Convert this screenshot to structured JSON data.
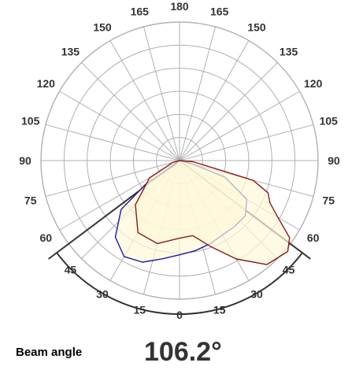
{
  "chart_data": {
    "type": "polar",
    "angle_labels": {
      "right": [
        "0",
        "15",
        "30",
        "45",
        "60",
        "75",
        "90",
        "105",
        "120",
        "135",
        "150",
        "165",
        "180"
      ],
      "left": [
        "15",
        "30",
        "45",
        "60",
        "75",
        "90",
        "105",
        "120",
        "135",
        "150",
        "165"
      ]
    },
    "radial_grid_rings": 6,
    "radial_spokes_step_deg": 15,
    "series": [
      {
        "color": "#1a1a9e",
        "fill": "#fdf8d8",
        "points_deg_r": [
          [
            -50,
            0.05
          ],
          [
            -55,
            0.3
          ],
          [
            -50,
            0.55
          ],
          [
            -40,
            0.72
          ],
          [
            -30,
            0.8
          ],
          [
            -20,
            0.78
          ],
          [
            -10,
            0.72
          ],
          [
            0,
            0.68
          ],
          [
            10,
            0.66
          ],
          [
            20,
            0.64
          ],
          [
            30,
            0.62
          ],
          [
            40,
            0.62
          ],
          [
            50,
            0.62
          ],
          [
            60,
            0.56
          ],
          [
            70,
            0.35
          ],
          [
            75,
            0.1
          ]
        ]
      },
      {
        "color": "#8b1a1a",
        "fill": "#fdf8d8",
        "points_deg_r": [
          [
            -75,
            0.05
          ],
          [
            -60,
            0.25
          ],
          [
            -45,
            0.45
          ],
          [
            -30,
            0.6
          ],
          [
            -15,
            0.62
          ],
          [
            0,
            0.56
          ],
          [
            10,
            0.55
          ],
          [
            20,
            0.66
          ],
          [
            30,
            0.82
          ],
          [
            40,
            0.98
          ],
          [
            50,
            1.02
          ],
          [
            55,
            0.97
          ],
          [
            60,
            0.82
          ],
          [
            65,
            0.72
          ],
          [
            70,
            0.68
          ],
          [
            75,
            0.55
          ],
          [
            85,
            0.1
          ]
        ]
      }
    ],
    "beam_angle_deg": 106.2
  },
  "footer": {
    "label": "Beam angle",
    "value": "106.2°"
  }
}
